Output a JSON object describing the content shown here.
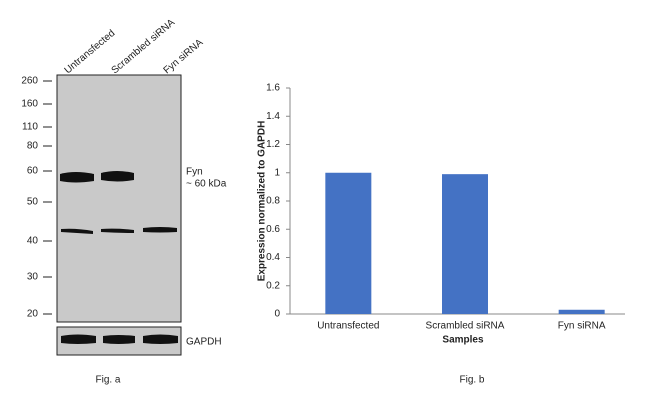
{
  "blot": {
    "lanes": [
      "Untransfected",
      "Scrambled siRNA",
      "Fyn siRNA"
    ],
    "markers": [
      "260",
      "160",
      "110",
      "80",
      "60",
      "50",
      "40",
      "30",
      "20"
    ],
    "band_label": "Fyn",
    "band_size": "~ 60 kDa",
    "loading_control": "GAPDH",
    "caption": "Fig. a"
  },
  "chart_data": {
    "type": "bar",
    "caption": "Fig. b",
    "x_label": "Samples",
    "y_label": "Expression normalized to GAPDH",
    "categories": [
      "Untransfected",
      "Scrambled siRNA",
      "Fyn siRNA"
    ],
    "values": [
      1.0,
      0.99,
      0.03
    ],
    "color": "#4472c4",
    "ylim": [
      0,
      1.6
    ],
    "yticks": [
      0,
      0.2,
      0.4,
      0.6,
      0.8,
      1,
      1.2,
      1.4,
      1.6
    ],
    "grid": false
  }
}
